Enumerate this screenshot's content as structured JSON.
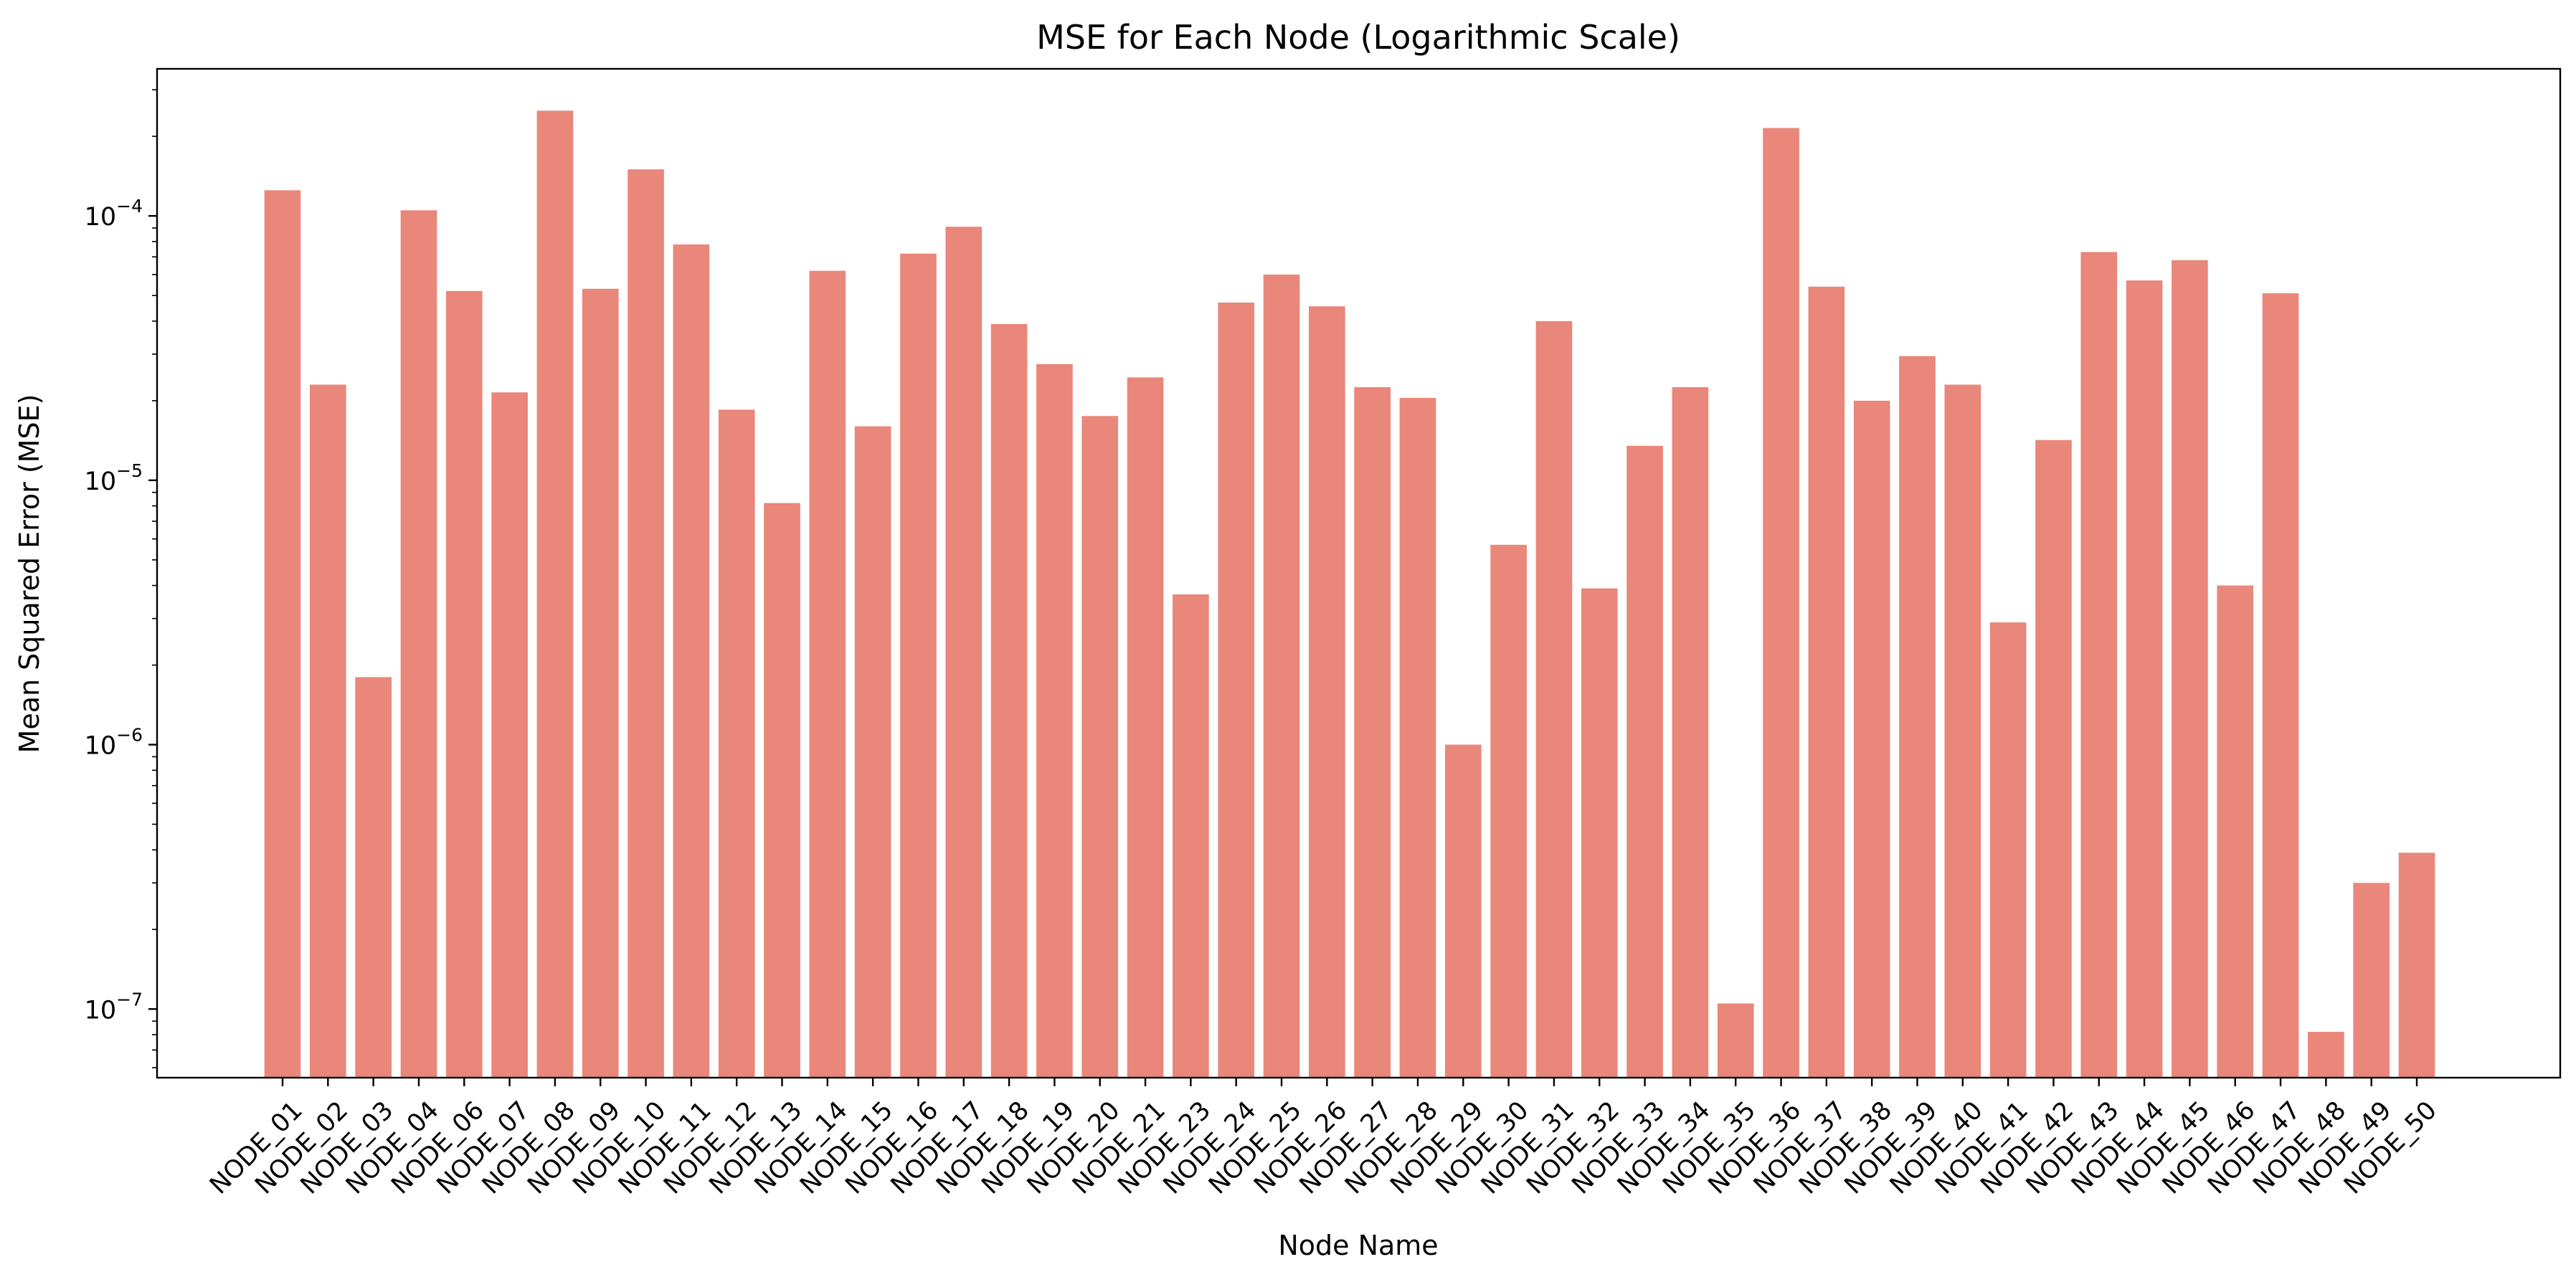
{
  "chart_data": {
    "type": "bar",
    "title": "MSE for Each Node (Logarithmic Scale)",
    "xlabel": "Node Name",
    "ylabel": "Mean Squared Error (MSE)",
    "yscale": "log",
    "ylim": [
      5.5e-08,
      0.00036
    ],
    "grid": false,
    "color": "#E9877A",
    "y_ticks": [
      {
        "value": 1e-07,
        "exp": "−7"
      },
      {
        "value": 1e-06,
        "exp": "−6"
      },
      {
        "value": 1e-05,
        "exp": "−5"
      },
      {
        "value": 0.0001,
        "exp": "−4"
      }
    ],
    "categories": [
      "NODE_01",
      "NODE_02",
      "NODE_03",
      "NODE_04",
      "NODE_06",
      "NODE_07",
      "NODE_08",
      "NODE_09",
      "NODE_10",
      "NODE_11",
      "NODE_12",
      "NODE_13",
      "NODE_14",
      "NODE_15",
      "NODE_16",
      "NODE_17",
      "NODE_18",
      "NODE_19",
      "NODE_20",
      "NODE_21",
      "NODE_23",
      "NODE_24",
      "NODE_25",
      "NODE_26",
      "NODE_27",
      "NODE_28",
      "NODE_29",
      "NODE_30",
      "NODE_31",
      "NODE_32",
      "NODE_33",
      "NODE_34",
      "NODE_35",
      "NODE_36",
      "NODE_37",
      "NODE_38",
      "NODE_39",
      "NODE_40",
      "NODE_41",
      "NODE_42",
      "NODE_43",
      "NODE_44",
      "NODE_45",
      "NODE_46",
      "NODE_47",
      "NODE_48",
      "NODE_49",
      "NODE_50"
    ],
    "values": [
      0.000125,
      2.3e-05,
      1.8e-06,
      0.000105,
      5.2e-05,
      2.15e-05,
      0.00025,
      5.3e-05,
      0.00015,
      7.8e-05,
      1.85e-05,
      8.2e-06,
      6.2e-05,
      1.6e-05,
      7.2e-05,
      9.1e-05,
      3.9e-05,
      2.75e-05,
      1.75e-05,
      2.45e-05,
      3.7e-06,
      4.7e-05,
      6e-05,
      4.55e-05,
      2.25e-05,
      2.05e-05,
      1e-06,
      5.7e-06,
      4e-05,
      3.9e-06,
      1.35e-05,
      2.25e-05,
      1.05e-07,
      0.000215,
      5.4e-05,
      2e-05,
      2.95e-05,
      2.3e-05,
      2.9e-06,
      1.42e-05,
      7.3e-05,
      5.7e-05,
      6.8e-05,
      4e-06,
      5.1e-05,
      8.2e-08,
      3e-07,
      3.9e-07
    ]
  }
}
